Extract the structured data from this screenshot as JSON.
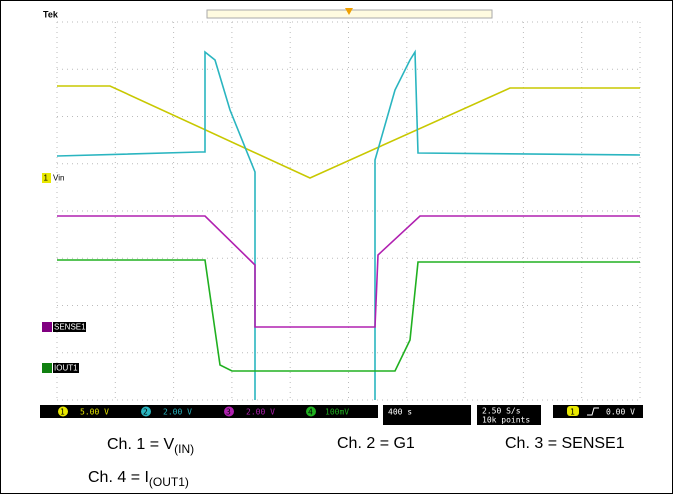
{
  "scope": {
    "brand": "Tek",
    "markers": [
      {
        "num": "1",
        "label": "Vin"
      },
      {
        "label": "SENSE1"
      },
      {
        "label": "IOUT1"
      }
    ],
    "channels": [
      {
        "num": "1",
        "scale": "5.00 V"
      },
      {
        "num": "2",
        "scale": "2.00 V"
      },
      {
        "num": "3",
        "scale": "2.00 V"
      },
      {
        "num": "4",
        "scale": "100mV"
      }
    ],
    "timebase": "400 s",
    "rate": "2.50 S/s",
    "points": "10k points",
    "trigger": {
      "num": "1",
      "level": "0.00 V"
    }
  },
  "caption": [
    {
      "text": "Ch. 1 = V",
      "sub": "(IN)"
    },
    {
      "text": "Ch. 2 = G1"
    },
    {
      "text": "Ch. 3 = SENSE1"
    },
    {
      "text": "Ch. 4 = I",
      "sub": "(OUT1)"
    }
  ]
}
